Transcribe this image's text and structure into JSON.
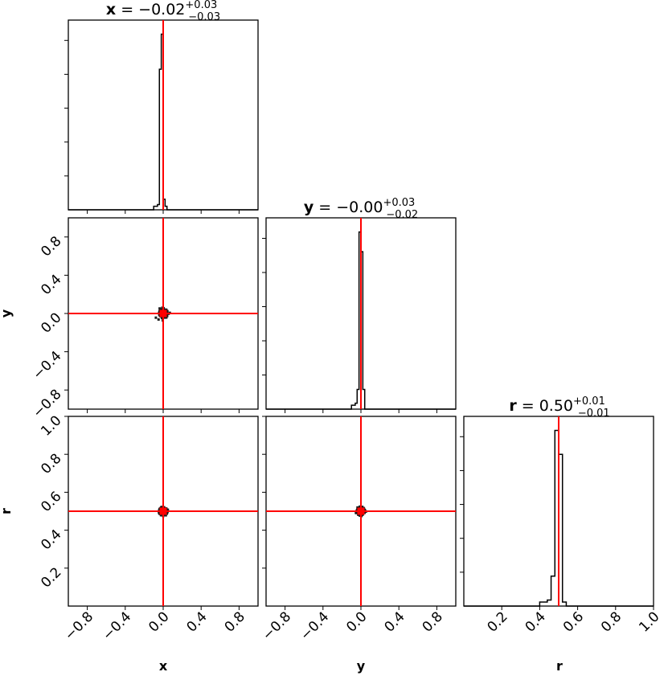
{
  "chart_data": {
    "type": "corner",
    "parameters": [
      "x",
      "y",
      "r"
    ],
    "truths": {
      "x": 0.0,
      "y": 0.0,
      "r": 0.5
    },
    "ranges": {
      "x": [
        -1,
        1
      ],
      "y": [
        -1,
        1
      ],
      "r": [
        0,
        1
      ]
    },
    "titles": [
      {
        "param": "x",
        "name": "x",
        "value": "−0.02",
        "plus": "+0.03",
        "minus": "−0.03"
      },
      {
        "param": "y",
        "name": "y",
        "value": "−0.00",
        "plus": "+0.03",
        "minus": "−0.02"
      },
      {
        "param": "r",
        "name": "r",
        "value": "0.50",
        "plus": "+0.01",
        "minus": "−0.01"
      }
    ],
    "tick_values": {
      "x": [
        -0.8,
        -0.4,
        0.0,
        0.4,
        0.8
      ],
      "y": [
        -0.8,
        -0.4,
        0.0,
        0.4,
        0.8
      ],
      "r": [
        0.2,
        0.4,
        0.6,
        0.8,
        1.0
      ]
    },
    "tick_labels": {
      "x": [
        "−0.8",
        "−0.4",
        "0.0",
        "0.4",
        "0.8"
      ],
      "y": [
        "−0.8",
        "−0.4",
        "0.0",
        "0.4",
        "0.8"
      ],
      "r": [
        "0.2",
        "0.4",
        "0.6",
        "0.8",
        "1.0"
      ]
    },
    "axis_labels": {
      "x": "x",
      "y": "y",
      "r": "r"
    },
    "histograms": {
      "x": {
        "edges": [
          -0.1,
          -0.06,
          -0.04,
          -0.02,
          0.0,
          0.02,
          0.04,
          0.06
        ],
        "counts": [
          2,
          3,
          80,
          100,
          6,
          2,
          0
        ]
      },
      "y": {
        "edges": [
          -0.1,
          -0.06,
          -0.04,
          -0.02,
          0.0,
          0.02,
          0.04,
          0.06
        ],
        "counts": [
          2,
          3,
          10,
          90,
          80,
          10,
          0
        ]
      },
      "r": {
        "edges": [
          0.4,
          0.44,
          0.46,
          0.48,
          0.5,
          0.52,
          0.54,
          0.56
        ],
        "counts": [
          2,
          3,
          15,
          88,
          76,
          2,
          0
        ]
      }
    },
    "scatter_panels": [
      {
        "x_param": "x",
        "y_param": "y",
        "center": [
          0.0,
          0.0
        ],
        "spread": [
          0.018,
          0.018
        ]
      },
      {
        "x_param": "x",
        "y_param": "r",
        "center": [
          0.0,
          0.5
        ],
        "spread": [
          0.018,
          0.008
        ]
      },
      {
        "x_param": "y",
        "y_param": "r",
        "center": [
          0.0,
          0.5
        ],
        "spread": [
          0.018,
          0.008
        ]
      }
    ]
  }
}
